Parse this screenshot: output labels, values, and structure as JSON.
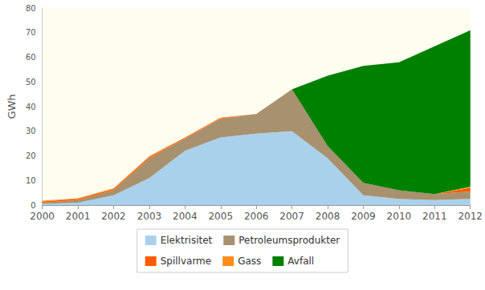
{
  "chart_data": {
    "type": "area",
    "stacked": true,
    "y_label": "GWh",
    "categories": [
      "2000",
      "2001",
      "2002",
      "2003",
      "2004",
      "2005",
      "2006",
      "2007",
      "2008",
      "2009",
      "2010",
      "2011",
      "2012"
    ],
    "ylim": [
      0,
      80
    ],
    "yticks": [
      0,
      10,
      20,
      30,
      40,
      50,
      60,
      70,
      80
    ],
    "grid": false,
    "legend": "bottom",
    "series": [
      {
        "name": "Elektrisitet",
        "color": "#a9d1ec",
        "values": [
          0.5,
          1,
          4,
          11,
          22,
          27.5,
          29,
          30,
          19,
          4,
          2.5,
          2,
          2.5
        ]
      },
      {
        "name": "Petroleumsprodukter",
        "color": "#a8916f",
        "values": [
          0.5,
          1,
          2,
          8,
          5,
          7.5,
          8,
          17,
          5,
          5,
          3.5,
          2.5,
          3
        ]
      },
      {
        "name": "Spillvarme",
        "color": "#ff5a00",
        "values": [
          0.5,
          0.5,
          0.5,
          0.5,
          0.3,
          0.3,
          0,
          0,
          0,
          0,
          0,
          0,
          1.5
        ]
      },
      {
        "name": "Gass",
        "color": "#ff8c1a",
        "values": [
          0.3,
          0.3,
          0.3,
          0.3,
          0.2,
          0.2,
          0,
          0,
          0,
          0,
          0,
          0,
          0.5
        ]
      },
      {
        "name": "Avfall",
        "color": "#008000",
        "values": [
          0,
          0,
          0,
          0,
          0,
          0,
          0,
          0,
          28.5,
          47.5,
          52,
          60,
          63.5
        ]
      }
    ]
  }
}
